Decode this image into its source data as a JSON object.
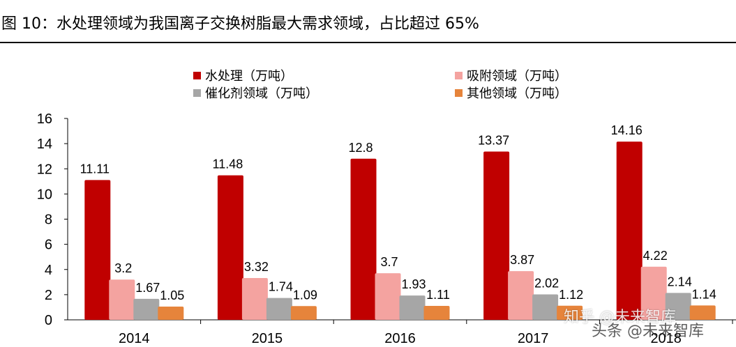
{
  "figure": {
    "title": "图 10：水处理领域为我国离子交换树脂最大需求领域，占比超过 65%"
  },
  "watermark": {
    "line1": "知乎 @未来智库",
    "line2": "头条 @未来智库"
  },
  "chart_data": {
    "type": "bar",
    "categories": [
      "2014",
      "2015",
      "2016",
      "2017",
      "2018"
    ],
    "series": [
      {
        "name": "水处理（万吨）",
        "color": "#C00000",
        "values": [
          11.11,
          11.48,
          12.8,
          13.37,
          14.16
        ],
        "labels": [
          "11.11",
          "11.48",
          "12.8",
          "13.37",
          "14.16"
        ]
      },
      {
        "name": "吸附领域（万吨）",
        "color": "#F4A3A0",
        "values": [
          3.2,
          3.32,
          3.7,
          3.87,
          4.22
        ],
        "labels": [
          "3.2",
          "3.32",
          "3.7",
          "3.87",
          "4.22"
        ]
      },
      {
        "name": "催化剂领域（万吨）",
        "color": "#A6A6A6",
        "values": [
          1.67,
          1.74,
          1.93,
          2.02,
          2.14
        ],
        "labels": [
          "1.67",
          "1.74",
          "1.93",
          "2.02",
          "2.14"
        ]
      },
      {
        "name": "其他领域（万吨）",
        "color": "#E6843B",
        "values": [
          1.05,
          1.09,
          1.11,
          1.12,
          1.14
        ],
        "labels": [
          "1.05",
          "1.09",
          "1.11",
          "1.12",
          "1.14"
        ]
      }
    ],
    "yticks": [
      "0",
      "2",
      "4",
      "6",
      "8",
      "10",
      "12",
      "14",
      "16"
    ],
    "ylim": [
      0,
      16
    ],
    "grid": false,
    "legend_position": "top"
  }
}
